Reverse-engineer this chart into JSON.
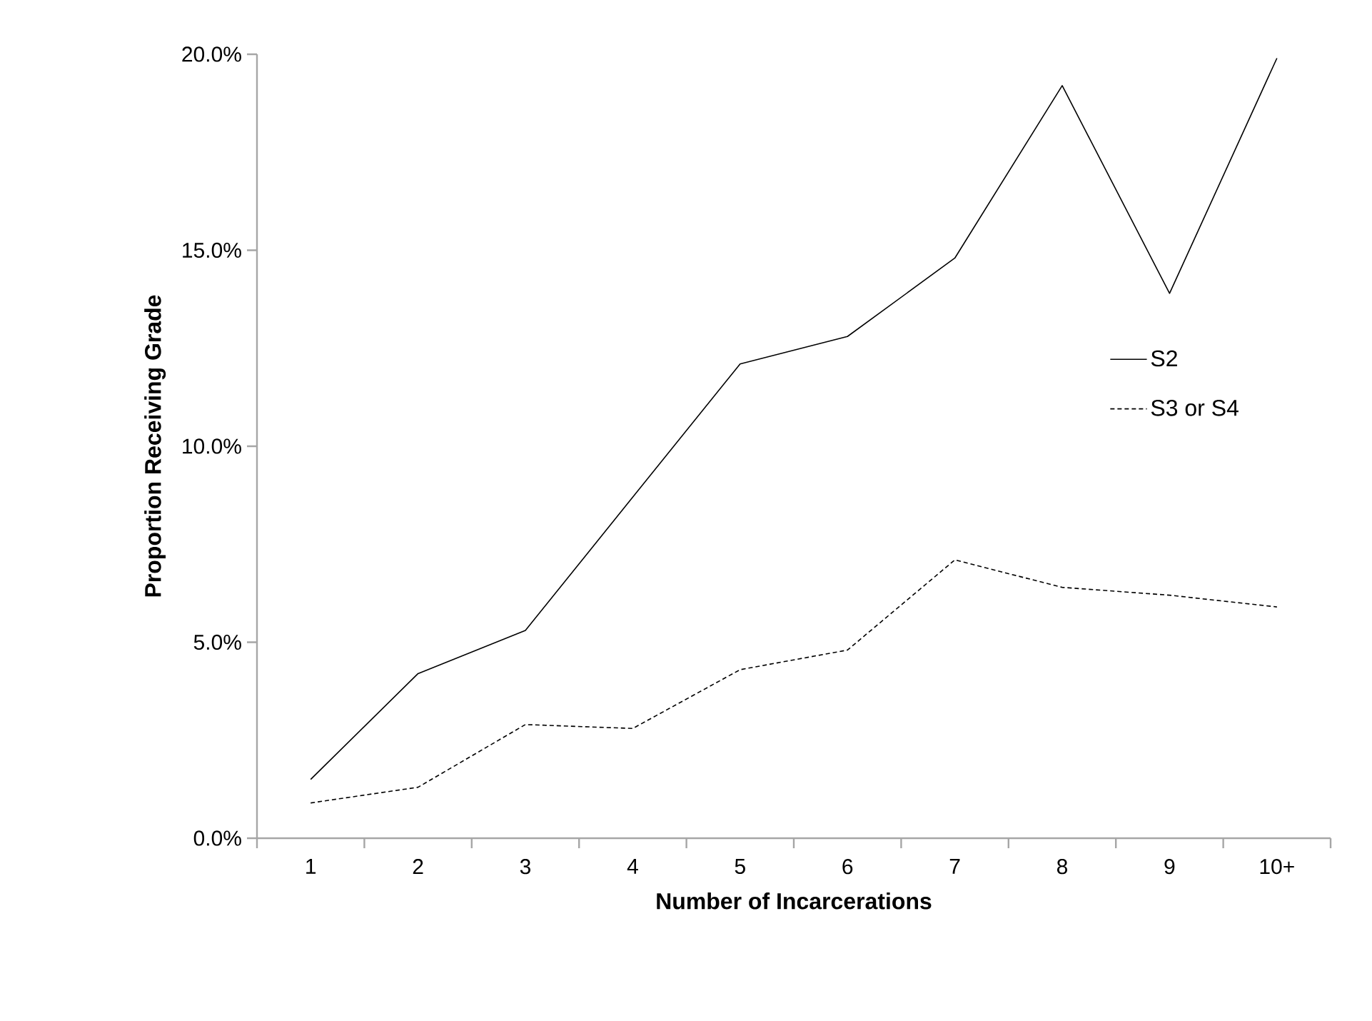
{
  "chart_data": {
    "type": "line",
    "xlabel": "Number of Incarcerations",
    "ylabel": "Proportion Receiving Grade",
    "categories": [
      "1",
      "2",
      "3",
      "4",
      "5",
      "6",
      "7",
      "8",
      "9",
      "10+"
    ],
    "ylim": [
      0,
      20
    ],
    "yticks": [
      {
        "value": 0,
        "label": "0.0%"
      },
      {
        "value": 5,
        "label": "5.0%"
      },
      {
        "value": 10,
        "label": "10.0%"
      },
      {
        "value": 15,
        "label": "15.0%"
      },
      {
        "value": 20,
        "label": "20.0%"
      }
    ],
    "series": [
      {
        "name": "S2",
        "color": "#000000",
        "line_style": "solid",
        "values": [
          1.5,
          4.2,
          5.3,
          8.7,
          12.1,
          12.8,
          14.8,
          19.2,
          13.9,
          19.9
        ]
      },
      {
        "name": "S3 or S4",
        "color": "#000000",
        "line_style": "dashed",
        "values": [
          0.9,
          1.3,
          2.9,
          2.8,
          4.3,
          4.8,
          7.1,
          6.4,
          6.2,
          5.9
        ]
      }
    ],
    "grid": false,
    "legend": "right"
  }
}
